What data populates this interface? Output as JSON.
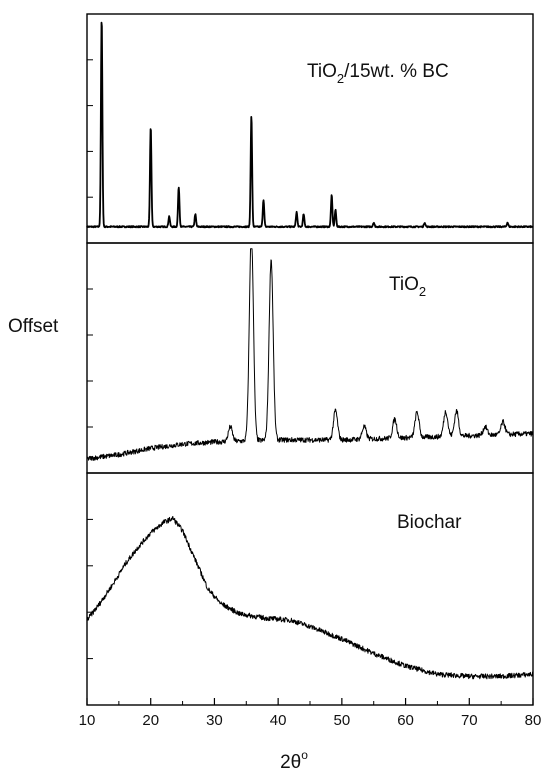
{
  "figure": {
    "ylabel": "Offset",
    "xlabel_main": "2θ",
    "xlabel_sup": "o"
  },
  "chart_data": {
    "type": "line",
    "xlabel": "2θ°",
    "ylabel": "Offset",
    "xlim": [
      10,
      80
    ],
    "x_ticks": [
      10,
      20,
      30,
      40,
      50,
      60,
      70,
      80
    ],
    "grid": false,
    "legend": "none",
    "line_color": "#000000",
    "panels": [
      {
        "name": "TiO2/15wt. % BC",
        "label_main": "TiO",
        "label_sub": "2",
        "label_rest": "/15wt. % BC",
        "baseline": 0.03,
        "noise": 0.003,
        "peaks": [
          {
            "x": 12.3,
            "y": 1.0
          },
          {
            "x": 20.0,
            "y": 0.48
          },
          {
            "x": 22.9,
            "y": 0.05
          },
          {
            "x": 24.4,
            "y": 0.19
          },
          {
            "x": 27.0,
            "y": 0.06
          },
          {
            "x": 35.8,
            "y": 0.53
          },
          {
            "x": 37.7,
            "y": 0.13
          },
          {
            "x": 42.9,
            "y": 0.07
          },
          {
            "x": 44.0,
            "y": 0.06
          },
          {
            "x": 48.4,
            "y": 0.15
          },
          {
            "x": 49.0,
            "y": 0.08
          },
          {
            "x": 55.0,
            "y": 0.02
          },
          {
            "x": 63.0,
            "y": 0.02
          },
          {
            "x": 76.0,
            "y": 0.02
          }
        ]
      },
      {
        "name": "TiO2",
        "label_main": "TiO",
        "label_sub": "2",
        "label_rest": "",
        "baseline_points": [
          [
            10,
            0.02
          ],
          [
            15,
            0.04
          ],
          [
            20,
            0.07
          ],
          [
            25,
            0.09
          ],
          [
            30,
            0.1
          ],
          [
            40,
            0.11
          ],
          [
            50,
            0.11
          ],
          [
            60,
            0.12
          ],
          [
            70,
            0.13
          ],
          [
            80,
            0.14
          ]
        ],
        "noise": 0.012,
        "peaks": [
          {
            "x": 32.5,
            "y": 0.07
          },
          {
            "x": 35.8,
            "y": 1.0
          },
          {
            "x": 38.9,
            "y": 0.86
          },
          {
            "x": 49.0,
            "y": 0.14
          },
          {
            "x": 53.5,
            "y": 0.06
          },
          {
            "x": 58.3,
            "y": 0.09
          },
          {
            "x": 61.8,
            "y": 0.12
          },
          {
            "x": 66.3,
            "y": 0.12
          },
          {
            "x": 68.0,
            "y": 0.12
          },
          {
            "x": 72.5,
            "y": 0.04
          },
          {
            "x": 75.3,
            "y": 0.06
          }
        ]
      },
      {
        "name": "Biochar",
        "label_main": "Biochar",
        "label_sub": "",
        "label_rest": "",
        "points": [
          [
            10,
            0.35
          ],
          [
            12,
            0.43
          ],
          [
            14,
            0.52
          ],
          [
            16,
            0.62
          ],
          [
            18,
            0.7
          ],
          [
            20,
            0.77
          ],
          [
            22,
            0.82
          ],
          [
            23.5,
            0.84
          ],
          [
            25,
            0.78
          ],
          [
            27,
            0.64
          ],
          [
            29,
            0.5
          ],
          [
            31,
            0.43
          ],
          [
            34,
            0.38
          ],
          [
            38,
            0.36
          ],
          [
            42,
            0.35
          ],
          [
            45,
            0.32
          ],
          [
            50,
            0.26
          ],
          [
            55,
            0.19
          ],
          [
            60,
            0.13
          ],
          [
            65,
            0.09
          ],
          [
            70,
            0.08
          ],
          [
            75,
            0.08
          ],
          [
            80,
            0.09
          ]
        ],
        "noise": 0.012
      }
    ]
  }
}
